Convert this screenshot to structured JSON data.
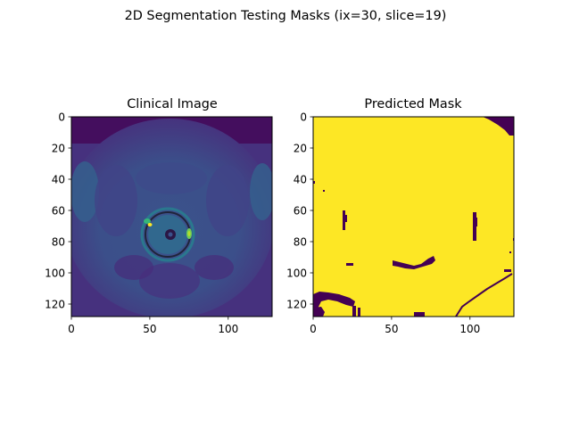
{
  "figure": {
    "suptitle": "2D Segmentation Testing Masks (ix=30, slice=19)"
  },
  "chart_data": [
    {
      "type": "heatmap",
      "title": "Clinical Image",
      "xlim": [
        0,
        128
      ],
      "ylim": [
        128,
        0
      ],
      "xticks": [
        0,
        50,
        100
      ],
      "yticks": [
        0,
        20,
        40,
        60,
        80,
        100,
        120
      ],
      "colormap": "viridis",
      "content": "axial pelvic MRI slice with a bright ring near (64, 75)"
    },
    {
      "type": "heatmap",
      "title": "Predicted Mask",
      "xlim": [
        0,
        128
      ],
      "ylim": [
        128,
        0
      ],
      "xticks": [
        0,
        50,
        100
      ],
      "yticks": [
        0,
        20,
        40,
        60,
        80,
        100,
        120
      ],
      "colormap": "viridis",
      "foreground_color": "#fde725",
      "background_color": "#440154",
      "content": "binary mask, nearly all foreground"
    }
  ]
}
